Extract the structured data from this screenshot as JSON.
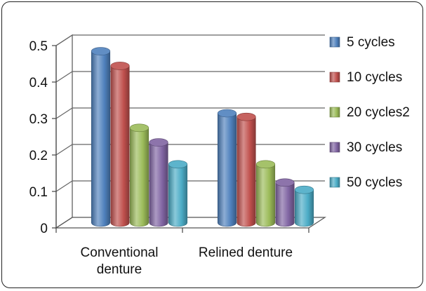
{
  "chart_data": {
    "type": "bar",
    "categories": [
      "Conventional denture",
      "Relined denture"
    ],
    "category_lines": [
      [
        "Conventional",
        "denture"
      ],
      [
        "Relined denture"
      ]
    ],
    "series": [
      {
        "name": "5 cycles",
        "values": [
          0.47,
          0.3
        ],
        "color": "#4F81BD"
      },
      {
        "name": "10 cycles",
        "values": [
          0.43,
          0.29
        ],
        "color": "#C0504D"
      },
      {
        "name": "20 cycles2",
        "values": [
          0.26,
          0.16
        ],
        "color": "#9BBB59"
      },
      {
        "name": "30 cycles",
        "values": [
          0.22,
          0.11
        ],
        "color": "#8064A2"
      },
      {
        "name": "50 cycles",
        "values": [
          0.16,
          0.09
        ],
        "color": "#4BACC6"
      }
    ],
    "yticks": [
      "0",
      "0.1",
      "0.2",
      "0.3",
      "0.4",
      "0.5"
    ],
    "ylim": [
      0,
      0.5
    ],
    "title": "",
    "xlabel": "",
    "ylabel": "",
    "grid": true,
    "legend_position": "right",
    "style": "3d-cylinder"
  }
}
